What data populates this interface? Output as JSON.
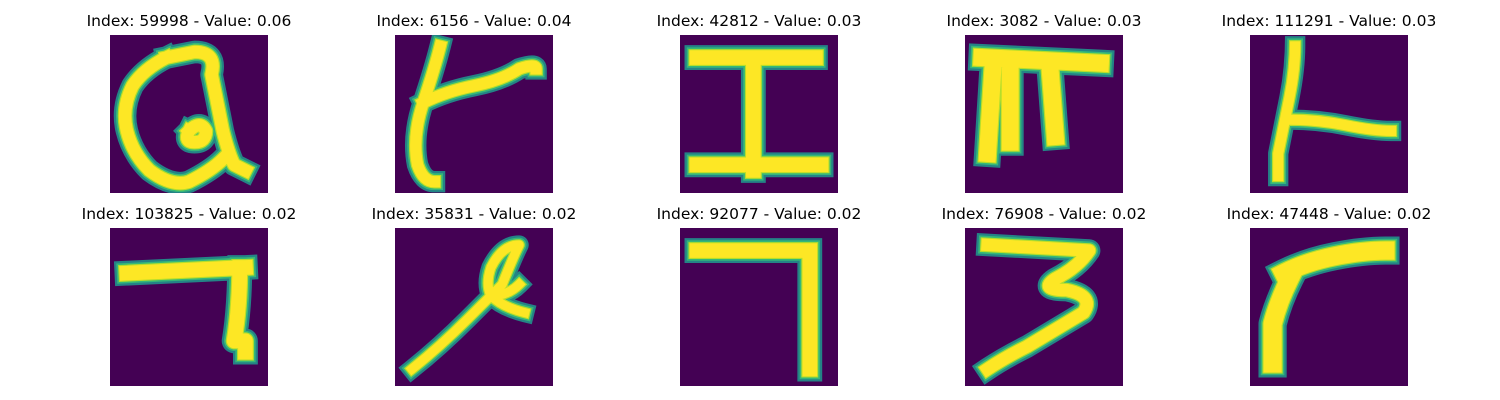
{
  "colors": {
    "background": "#440154",
    "stroke_core": "#fde725",
    "stroke_mid": "#b5de2b",
    "stroke_edge": "#35b779",
    "stroke_halo": "#21918c"
  },
  "samples": [
    {
      "title": "Index: 59998 - Value: 0.06",
      "index": 59998,
      "value": 0.06
    },
    {
      "title": "Index: 6156 - Value: 0.04",
      "index": 6156,
      "value": 0.04
    },
    {
      "title": "Index: 42812 - Value: 0.03",
      "index": 42812,
      "value": 0.03
    },
    {
      "title": "Index: 3082 - Value: 0.03",
      "index": 3082,
      "value": 0.03
    },
    {
      "title": "Index: 111291 - Value: 0.03",
      "index": 111291,
      "value": 0.03
    },
    {
      "title": "Index: 103825 - Value: 0.02",
      "index": 103825,
      "value": 0.02
    },
    {
      "title": "Index: 35831 - Value: 0.02",
      "index": 35831,
      "value": 0.02
    },
    {
      "title": "Index: 92077 - Value: 0.02",
      "index": 92077,
      "value": 0.02
    },
    {
      "title": "Index: 76908 - Value: 0.02",
      "index": 76908,
      "value": 0.02
    },
    {
      "title": "Index: 47448 - Value: 0.02",
      "index": 47448,
      "value": 0.02
    }
  ]
}
